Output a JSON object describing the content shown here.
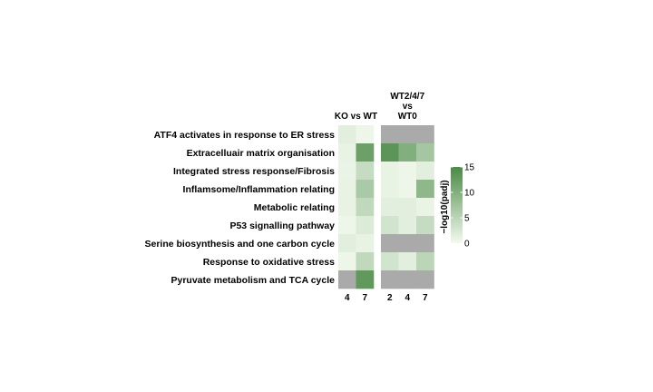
{
  "chart_data": {
    "type": "heatmap",
    "rows": [
      "ATF4 activates in response to ER stress",
      "Extracelluair matrix organisation",
      "Integrated stress response/Fibrosis",
      "Inflamsome/Inflammation relating",
      "Metabolic relating",
      "P53 signalling pathway",
      "Serine biosynthesis and one carbon cycle",
      "Response to oxidative stress",
      "Pyruvate metabolism and TCA cycle"
    ],
    "groups": [
      {
        "title_lines": [
          "KO vs WT"
        ],
        "columns": [
          "4",
          "7"
        ],
        "values": [
          [
            1.5,
            0.5
          ],
          [
            1.0,
            12.0
          ],
          [
            0.8,
            4.0
          ],
          [
            1.0,
            6.5
          ],
          [
            1.0,
            4.5
          ],
          [
            0.5,
            2.0
          ],
          [
            1.5,
            1.0
          ],
          [
            0.5,
            4.5
          ],
          [
            null,
            13.0
          ]
        ]
      },
      {
        "title_lines": [
          "WT2/4/7",
          "vs",
          "WT0"
        ],
        "columns": [
          "2",
          "4",
          "7"
        ],
        "values": [
          [
            null,
            null,
            null
          ],
          [
            13.5,
            10.0,
            7.0
          ],
          [
            1.0,
            0.5,
            1.5
          ],
          [
            1.0,
            0.5,
            9.0
          ],
          [
            1.5,
            1.5,
            0.8
          ],
          [
            3.0,
            1.5,
            4.0
          ],
          [
            null,
            null,
            null
          ],
          [
            3.0,
            1.5,
            5.0
          ],
          [
            null,
            null,
            null
          ]
        ]
      }
    ],
    "legend": {
      "title": "−log10(padj)",
      "ticks": [
        0,
        5,
        10,
        15
      ],
      "range": [
        0,
        15
      ]
    },
    "colors": {
      "low": "#f3faef",
      "high": "#4a8a46",
      "na": "#aaaaaa"
    }
  }
}
